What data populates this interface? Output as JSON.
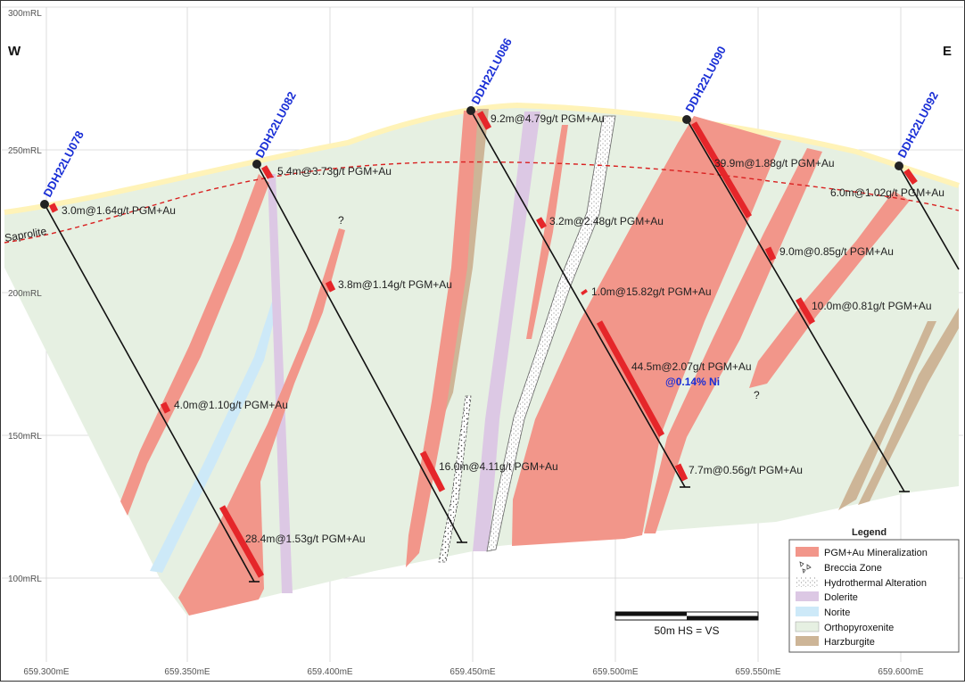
{
  "directions": {
    "west": "W",
    "east": "E"
  },
  "rl_labels": [
    "300mRL",
    "250mRL",
    "200mRL",
    "150mRL",
    "100mRL"
  ],
  "easting_labels": [
    "659.300mE",
    "659.350mE",
    "659.400mE",
    "659.450mE",
    "659.500mE",
    "659.550mE",
    "659.600mE"
  ],
  "saprolite_label": "Saprolite",
  "drillholes": [
    {
      "id": "DDH22LU078"
    },
    {
      "id": "DDH22LU082"
    },
    {
      "id": "DDH22LU086"
    },
    {
      "id": "DDH22LU090"
    },
    {
      "id": "DDH22LU092"
    }
  ],
  "intercepts": [
    "3.0m@1.64g/t PGM+Au",
    "4.0m@1.10g/t PGM+Au",
    "28.4m@1.53g/t PGM+Au",
    "5.4m@3.73g/t PGM+Au",
    "3.8m@1.14g/t PGM+Au",
    "16.0m@4.11g/t PGM+Au",
    "9.2m@4.79g/t PGM+Au",
    "3.2m@2.48g/t PGM+Au",
    "1.0m@15.82g/t PGM+Au",
    "44.5m@2.07g/t PGM+Au",
    "39.9m@1.88g/t PGM+Au",
    "9.0m@0.85g/t PGM+Au",
    "10.0m@0.81g/t PGM+Au",
    "7.7m@0.56g/t PGM+Au",
    "6.0m@1.02g/t PGM+Au"
  ],
  "ni_note": "@0.14% Ni",
  "question_mark": "?",
  "scale_bar": {
    "label": "50m  HS = VS"
  },
  "legend": {
    "title": "Legend",
    "items": [
      {
        "label": "PGM+Au Mineralization",
        "color": "#f2968a"
      },
      {
        "label": "Breccia Zone",
        "color": "#ffffff"
      },
      {
        "label": "Hydrothermal Alteration",
        "color": "#e8e8e8"
      },
      {
        "label": "Dolerite",
        "color": "#dcc8e4"
      },
      {
        "label": "Norite",
        "color": "#cde9f8"
      },
      {
        "label": "Orthopyroxenite",
        "color": "#e6f0e2"
      },
      {
        "label": "Harzburgite",
        "color": "#cdb597"
      }
    ]
  },
  "colors": {
    "mineralization": "#f2968a",
    "intercept": "#e5262a",
    "host": "#e6f0e2",
    "dolerite": "#dcc8e4",
    "norite": "#cde9f8",
    "harzburgite": "#cdb597",
    "saprolite_line": "#d92020",
    "surface": "#fff6c9",
    "hole_label": "#1a2fd6"
  }
}
